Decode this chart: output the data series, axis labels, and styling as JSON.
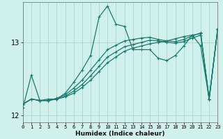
{
  "xlabel": "Humidex (Indice chaleur)",
  "bg_color": "#cff0eb",
  "grid_color": "#aad6cf",
  "line_color": "#1a7a6e",
  "xlim": [
    0,
    23
  ],
  "ylim": [
    11.9,
    13.55
  ],
  "yticks": [
    12,
    13
  ],
  "xticks": [
    0,
    1,
    2,
    3,
    4,
    5,
    6,
    7,
    8,
    9,
    10,
    11,
    12,
    13,
    14,
    15,
    16,
    17,
    18,
    19,
    20,
    21,
    22,
    23
  ],
  "series": [
    [
      12.1,
      12.55,
      12.2,
      12.22,
      12.22,
      12.3,
      12.45,
      12.62,
      12.82,
      13.35,
      13.5,
      13.25,
      13.22,
      12.9,
      12.9,
      12.9,
      12.78,
      12.75,
      12.82,
      12.95,
      13.1,
      12.95,
      12.22,
      13.18
    ],
    [
      12.15,
      12.22,
      12.2,
      12.2,
      12.22,
      12.25,
      12.3,
      12.38,
      12.48,
      12.6,
      12.72,
      12.8,
      12.88,
      12.92,
      12.95,
      12.98,
      13.0,
      13.02,
      13.05,
      13.08,
      13.1,
      13.12,
      12.22,
      13.18
    ],
    [
      12.15,
      12.22,
      12.2,
      12.2,
      12.22,
      12.26,
      12.33,
      12.42,
      12.54,
      12.67,
      12.8,
      12.87,
      12.94,
      12.97,
      13.0,
      13.03,
      13.02,
      13.0,
      12.99,
      13.01,
      13.06,
      13.1,
      12.22,
      13.18
    ],
    [
      12.15,
      12.22,
      12.2,
      12.2,
      12.23,
      12.28,
      12.37,
      12.48,
      12.62,
      12.76,
      12.9,
      12.96,
      13.02,
      13.04,
      13.06,
      13.07,
      13.04,
      13.02,
      13.01,
      13.04,
      13.09,
      13.13,
      12.22,
      13.18
    ]
  ]
}
